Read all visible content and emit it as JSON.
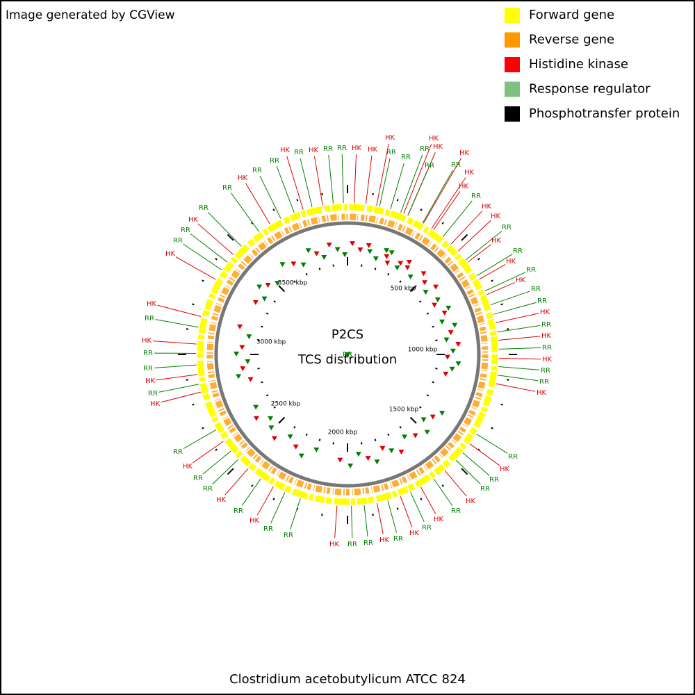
{
  "header": "Image generated by CGView",
  "legend": [
    {
      "label": "Forward gene",
      "color": "#ffff00"
    },
    {
      "label": "Reverse gene",
      "color": "#ff9900"
    },
    {
      "label": "Histidine kinase",
      "color": "#ff0000"
    },
    {
      "label": "Response regulator",
      "color": "#80c080"
    },
    {
      "label": "Phosphotransfer protein",
      "color": "#000000"
    }
  ],
  "center": {
    "title": "P2CS",
    "subtitle": "TCS distribution"
  },
  "scale_labels": [
    "500 kbp",
    "1000 kbp",
    "1500 kbp",
    "2000 kbp",
    "2500 kbp",
    "3000 kbp",
    "3500 kbp"
  ],
  "features": [
    {
      "label": "HK",
      "color": "#e00000"
    },
    {
      "label": "RR",
      "color": "#008000"
    },
    {
      "label": "RR",
      "color": "#008000"
    },
    {
      "label": "RR",
      "color": "#008000"
    },
    {
      "label": "HK",
      "color": "#e00000"
    },
    {
      "label": "HK",
      "color": "#e00000"
    },
    {
      "label": "RR",
      "color": "#008000"
    },
    {
      "label": "HK",
      "color": "#e00000"
    },
    {
      "label": "RR",
      "color": "#008000"
    },
    {
      "label": "HK",
      "color": "#e00000"
    },
    {
      "label": "HK",
      "color": "#e00000"
    },
    {
      "label": "RR",
      "color": "#008000"
    },
    {
      "label": "HK",
      "color": "#e00000"
    },
    {
      "label": "HK",
      "color": "#e00000"
    },
    {
      "label": "RR",
      "color": "#008000"
    },
    {
      "label": "HK",
      "color": "#e00000"
    },
    {
      "label": "RR",
      "color": "#008000"
    },
    {
      "label": "HK",
      "color": "#e00000"
    },
    {
      "label": "RR",
      "color": "#008000"
    },
    {
      "label": "HK",
      "color": "#e00000"
    },
    {
      "label": "RR",
      "color": "#008000"
    },
    {
      "label": "RR",
      "color": "#008000"
    },
    {
      "label": "HK",
      "color": "#e00000"
    },
    {
      "label": "RR",
      "color": "#008000"
    },
    {
      "label": "HK",
      "color": "#e00000"
    },
    {
      "label": "RR",
      "color": "#008000"
    },
    {
      "label": "HK",
      "color": "#e00000"
    },
    {
      "label": "RR",
      "color": "#008000"
    },
    {
      "label": "RR",
      "color": "#008000"
    },
    {
      "label": "HK",
      "color": "#e00000"
    },
    {
      "label": "RR",
      "color": "#008000"
    },
    {
      "label": "HK",
      "color": "#e00000"
    },
    {
      "label": "RR",
      "color": "#008000"
    },
    {
      "label": "RR",
      "color": "#008000"
    },
    {
      "label": "HK",
      "color": "#e00000"
    },
    {
      "label": "RR",
      "color": "#008000"
    },
    {
      "label": "HK",
      "color": "#e00000"
    },
    {
      "label": "RR",
      "color": "#008000"
    },
    {
      "label": "HK",
      "color": "#e00000"
    },
    {
      "label": "RR",
      "color": "#008000"
    },
    {
      "label": "HK",
      "color": "#e00000"
    },
    {
      "label": "RR",
      "color": "#008000"
    },
    {
      "label": "RR",
      "color": "#008000"
    },
    {
      "label": "HK",
      "color": "#e00000"
    },
    {
      "label": "RR",
      "color": "#008000"
    },
    {
      "label": "RR",
      "color": "#008000"
    },
    {
      "label": "HK",
      "color": "#e00000"
    },
    {
      "label": "RR",
      "color": "#008000"
    },
    {
      "label": "HK",
      "color": "#e00000"
    },
    {
      "label": "RR",
      "color": "#008000"
    },
    {
      "label": "RR",
      "color": "#008000"
    },
    {
      "label": "HK",
      "color": "#e00000"
    },
    {
      "label": "RR",
      "color": "#008000"
    },
    {
      "label": "HK",
      "color": "#e00000"
    },
    {
      "label": "RR",
      "color": "#008000"
    },
    {
      "label": "HK",
      "color": "#e00000"
    },
    {
      "label": "RR",
      "color": "#008000"
    },
    {
      "label": "RR",
      "color": "#008000"
    },
    {
      "label": "HK",
      "color": "#e00000"
    },
    {
      "label": "RR",
      "color": "#008000"
    },
    {
      "label": "HK",
      "color": "#e00000"
    },
    {
      "label": "HK",
      "color": "#e00000"
    },
    {
      "label": "RR",
      "color": "#008000"
    },
    {
      "label": "RR",
      "color": "#008000"
    },
    {
      "label": "HK",
      "color": "#e00000"
    },
    {
      "label": "RR",
      "color": "#008000"
    },
    {
      "label": "RR",
      "color": "#008000"
    },
    {
      "label": "HK",
      "color": "#e00000"
    },
    {
      "label": "RR",
      "color": "#008000"
    },
    {
      "label": "RR",
      "color": "#008000"
    },
    {
      "label": "HK",
      "color": "#e00000"
    },
    {
      "label": "RR",
      "color": "#008000"
    },
    {
      "label": "HK",
      "color": "#e00000"
    },
    {
      "label": "RR",
      "color": "#008000"
    },
    {
      "label": "RR",
      "color": "#008000"
    },
    {
      "label": "HK",
      "color": "#e00000"
    },
    {
      "label": "HK",
      "color": "#e00000"
    },
    {
      "label": "RR",
      "color": "#008000"
    },
    {
      "label": "RR",
      "color": "#008000"
    }
  ],
  "caption": "Clostridium acetobutylicum ATCC 824"
}
